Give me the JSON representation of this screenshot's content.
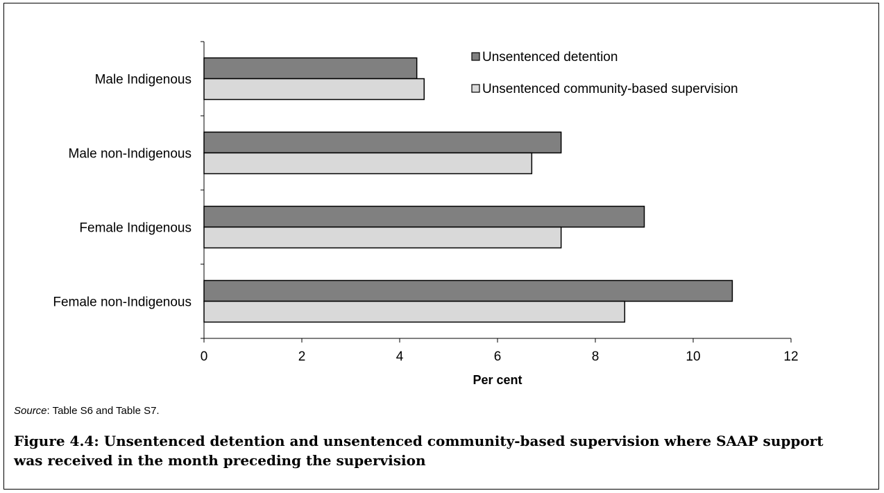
{
  "chart_data": {
    "type": "bar",
    "orientation": "horizontal",
    "categories": [
      "Male Indigenous",
      "Male non-Indigenous",
      "Female Indigenous",
      "Female non-Indigenous"
    ],
    "series": [
      {
        "name": "Unsentenced detention",
        "values": [
          4.35,
          7.3,
          9.0,
          10.8
        ],
        "color": "#808080"
      },
      {
        "name": "Unsentenced community-based supervision",
        "values": [
          4.5,
          6.7,
          7.3,
          8.6
        ],
        "color": "#d9d9d9"
      }
    ],
    "xlabel": "Per cent",
    "ylabel": "",
    "xlim": [
      0,
      12
    ],
    "xticks": [
      "0",
      "2",
      "4",
      "6",
      "8",
      "10",
      "12"
    ],
    "grid": false,
    "legend_position": "top-right"
  },
  "source": {
    "label": "Source",
    "text": ": Table S6 and Table S7."
  },
  "caption": "Figure 4.4: Unsentenced detention and unsentenced community-based supervision where SAAP support was received in the month preceding the supervision"
}
